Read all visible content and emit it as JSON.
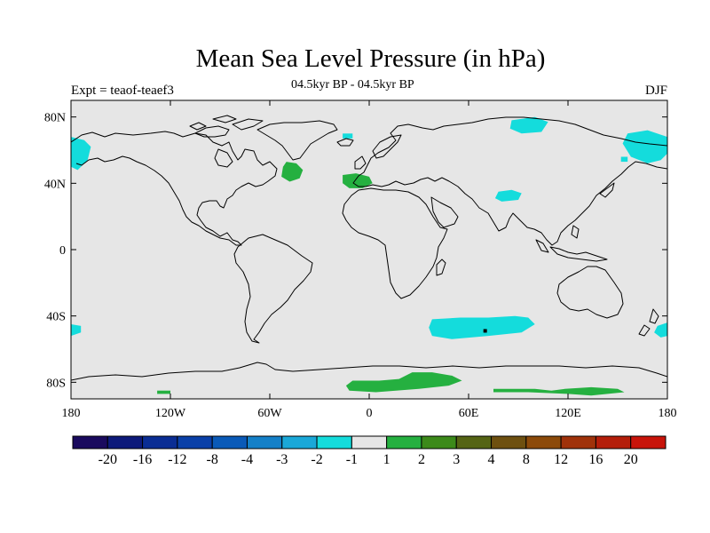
{
  "title": "Mean Sea Level Pressure (in hPa)",
  "subtitle": "04.5kyr BP - 04.5kyr BP",
  "left_label": "Expt = teaof-teaef3",
  "right_label": "DJF",
  "chart_data": {
    "type": "map",
    "projection": "cylindrical-equidistant",
    "lon_range": [
      -180,
      180
    ],
    "lat_range": [
      -90,
      90
    ],
    "x_ticks": [
      {
        "lon": -180,
        "label": "180"
      },
      {
        "lon": -120,
        "label": "120W"
      },
      {
        "lon": -60,
        "label": "60W"
      },
      {
        "lon": 0,
        "label": "0"
      },
      {
        "lon": 60,
        "label": "60E"
      },
      {
        "lon": 120,
        "label": "120E"
      },
      {
        "lon": 180,
        "label": "180"
      }
    ],
    "y_ticks": [
      {
        "lat": 80,
        "label": "80N"
      },
      {
        "lat": 40,
        "label": "40N"
      },
      {
        "lat": 0,
        "label": "0"
      },
      {
        "lat": -40,
        "label": "40S"
      },
      {
        "lat": -80,
        "label": "80S"
      }
    ],
    "colorbar": {
      "colors": [
        "#1a0a5e",
        "#0d1a7a",
        "#0a2d94",
        "#0a40a8",
        "#0a5ab8",
        "#1480c8",
        "#1aa8d8",
        "#14dcdc",
        "#e6e6e6",
        "#25b040",
        "#3c8a1a",
        "#556414",
        "#6e5010",
        "#8c4a0a",
        "#a0320a",
        "#b41e0a",
        "#c8140a"
      ],
      "labels": [
        "-20",
        "-16",
        "-12",
        "-8",
        "-4",
        "-3",
        "-2",
        "-1",
        "1",
        "2",
        "3",
        "4",
        "8",
        "12",
        "16",
        "20"
      ]
    },
    "background_color": "#e6e6e6",
    "anomaly_regions": [
      {
        "color": "#14dcdc",
        "polygon": [
          [
            -180,
            68
          ],
          [
            -172,
            66
          ],
          [
            -168,
            62
          ],
          [
            -170,
            54
          ],
          [
            -176,
            48
          ],
          [
            -180,
            50
          ]
        ]
      },
      {
        "color": "#14dcdc",
        "polygon": [
          [
            180,
            68
          ],
          [
            168,
            72
          ],
          [
            156,
            70
          ],
          [
            153,
            64
          ],
          [
            158,
            56
          ],
          [
            168,
            52
          ],
          [
            176,
            54
          ],
          [
            180,
            58
          ]
        ]
      },
      {
        "color": "#14dcdc",
        "polygon": [
          [
            -180,
            -45
          ],
          [
            -174,
            -46
          ],
          [
            -174,
            -50
          ],
          [
            -180,
            -52
          ]
        ]
      },
      {
        "color": "#14dcdc",
        "polygon": [
          [
            180,
            -44
          ],
          [
            174,
            -46
          ],
          [
            172,
            -50
          ],
          [
            176,
            -53
          ],
          [
            180,
            -52
          ]
        ]
      },
      {
        "color": "#14dcdc",
        "polygon": [
          [
            86,
            78
          ],
          [
            100,
            80
          ],
          [
            108,
            77
          ],
          [
            104,
            71
          ],
          [
            92,
            70
          ],
          [
            85,
            73
          ]
        ]
      },
      {
        "color": "#14dcdc",
        "polygon": [
          [
            78,
            35
          ],
          [
            86,
            36
          ],
          [
            92,
            34
          ],
          [
            90,
            30
          ],
          [
            80,
            29
          ],
          [
            76,
            31
          ]
        ]
      },
      {
        "color": "#14dcdc",
        "polygon": [
          [
            38,
            -42
          ],
          [
            55,
            -41
          ],
          [
            72,
            -41
          ],
          [
            88,
            -40
          ],
          [
            96,
            -41
          ],
          [
            100,
            -45
          ],
          [
            92,
            -50
          ],
          [
            72,
            -52
          ],
          [
            50,
            -54
          ],
          [
            38,
            -52
          ],
          [
            36,
            -47
          ]
        ]
      },
      {
        "color": "#14dcdc",
        "polygon": [
          [
            -16,
            70
          ],
          [
            -10,
            70
          ],
          [
            -10,
            67
          ],
          [
            -16,
            67
          ]
        ]
      },
      {
        "color": "#14dcdc",
        "polygon": [
          [
            152,
            56
          ],
          [
            156,
            56
          ],
          [
            156,
            53
          ],
          [
            152,
            53
          ]
        ]
      },
      {
        "color": "#25b040",
        "polygon": [
          [
            -50,
            53
          ],
          [
            -44,
            52
          ],
          [
            -40,
            48
          ],
          [
            -42,
            43
          ],
          [
            -48,
            41
          ],
          [
            -53,
            44
          ],
          [
            -52,
            50
          ]
        ]
      },
      {
        "color": "#25b040",
        "polygon": [
          [
            -16,
            45
          ],
          [
            -8,
            46
          ],
          [
            0,
            44
          ],
          [
            2,
            40
          ],
          [
            -4,
            37
          ],
          [
            -12,
            37
          ],
          [
            -16,
            40
          ]
        ]
      },
      {
        "color": "#25b040",
        "polygon": [
          [
            -10,
            -79
          ],
          [
            6,
            -79
          ],
          [
            18,
            -78
          ],
          [
            26,
            -74
          ],
          [
            38,
            -74
          ],
          [
            50,
            -76
          ],
          [
            56,
            -79
          ],
          [
            48,
            -82
          ],
          [
            30,
            -84
          ],
          [
            4,
            -86
          ],
          [
            -12,
            -85
          ],
          [
            -14,
            -82
          ]
        ]
      },
      {
        "color": "#25b040",
        "polygon": [
          [
            75,
            -84
          ],
          [
            100,
            -84
          ],
          [
            110,
            -85
          ],
          [
            118,
            -84
          ],
          [
            134,
            -83
          ],
          [
            150,
            -84
          ],
          [
            154,
            -86
          ],
          [
            134,
            -88
          ],
          [
            120,
            -87
          ],
          [
            96,
            -86
          ],
          [
            75,
            -86
          ]
        ]
      },
      {
        "color": "#25b040",
        "polygon": [
          [
            -128,
            -85
          ],
          [
            -120,
            -85
          ],
          [
            -120,
            -87
          ],
          [
            -128,
            -87
          ]
        ]
      }
    ],
    "anomaly_points": [
      {
        "color": "#000000",
        "lon": 70,
        "lat": -49
      }
    ]
  }
}
